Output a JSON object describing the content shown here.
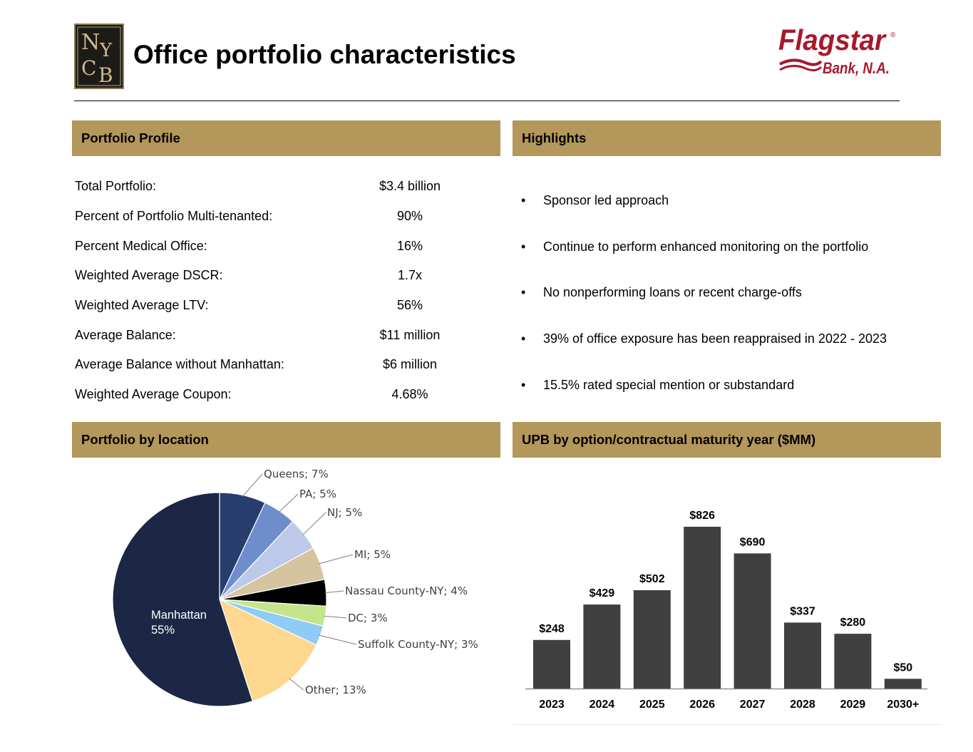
{
  "page": {
    "title": "Office portfolio characteristics"
  },
  "logos": {
    "nycb": {
      "letters": [
        "N",
        "Y",
        "C",
        "B"
      ]
    },
    "flagstar": {
      "name": "Flagstar",
      "mark": "®",
      "sub": "Bank, N.A.",
      "color": "#a6192e"
    }
  },
  "colors": {
    "header_bg": "#b3975b",
    "bar": "#404040"
  },
  "portfolio_profile": {
    "header": "Portfolio Profile",
    "rows": [
      {
        "label": "Total Portfolio:",
        "value": "$3.4 billion"
      },
      {
        "label": "Percent of Portfolio Multi-tenanted:",
        "value": "90%"
      },
      {
        "label": "Percent Medical Office:",
        "value": "16%"
      },
      {
        "label": "Weighted Average DSCR:",
        "value": "1.7x"
      },
      {
        "label": "Weighted Average LTV:",
        "value": "56%"
      },
      {
        "label": "Average Balance:",
        "value": "$11 million"
      },
      {
        "label": "Average Balance without Manhattan:",
        "value": "$6 million"
      },
      {
        "label": "Weighted Average Coupon:",
        "value": "4.68%"
      }
    ]
  },
  "highlights": {
    "header": "Highlights",
    "bullet": "•",
    "items": [
      "Sponsor led approach",
      "Continue to perform enhanced monitoring on the portfolio",
      "No nonperforming loans or recent charge-offs",
      "39% of office exposure has been reappraised in 2022 - 2023",
      "15.5% rated special mention or substandard"
    ]
  },
  "chart_data": [
    {
      "type": "pie",
      "title": "Portfolio by location",
      "slices": [
        {
          "name": "Queens",
          "value": 7,
          "label": "Queens; 7%",
          "color": "#263d6e"
        },
        {
          "name": "PA",
          "value": 5,
          "label": "PA; 5%",
          "color": "#6f8dcb"
        },
        {
          "name": "NJ",
          "value": 5,
          "label": "NJ; 5%",
          "color": "#bcc9e8"
        },
        {
          "name": "MI",
          "value": 5,
          "label": "MI; 5%",
          "color": "#d6c4a0"
        },
        {
          "name": "Nassau County-NY",
          "value": 4,
          "label": "Nassau County-NY; 4%",
          "color": "#000000"
        },
        {
          "name": "DC",
          "value": 3,
          "label": "DC; 3%",
          "color": "#c4e58a"
        },
        {
          "name": "Suffolk County-NY",
          "value": 3,
          "label": "Suffolk County-NY; 3%",
          "color": "#8ecbf6"
        },
        {
          "name": "Other",
          "value": 13,
          "label": "Other; 13%",
          "color": "#fed88f"
        },
        {
          "name": "Manhattan",
          "value": 55,
          "label_lines": [
            "Manhattan",
            "55%"
          ],
          "color": "#1b2745"
        }
      ]
    },
    {
      "type": "bar",
      "title": "UPB by option/contractual maturity year ($MM)",
      "categories": [
        "2023",
        "2024",
        "2025",
        "2026",
        "2027",
        "2028",
        "2029",
        "2030+"
      ],
      "values": [
        248,
        429,
        502,
        826,
        690,
        337,
        280,
        50
      ],
      "value_labels": [
        "$248",
        "$429",
        "$502",
        "$826",
        "$690",
        "$337",
        "$280",
        "$50"
      ]
    }
  ]
}
